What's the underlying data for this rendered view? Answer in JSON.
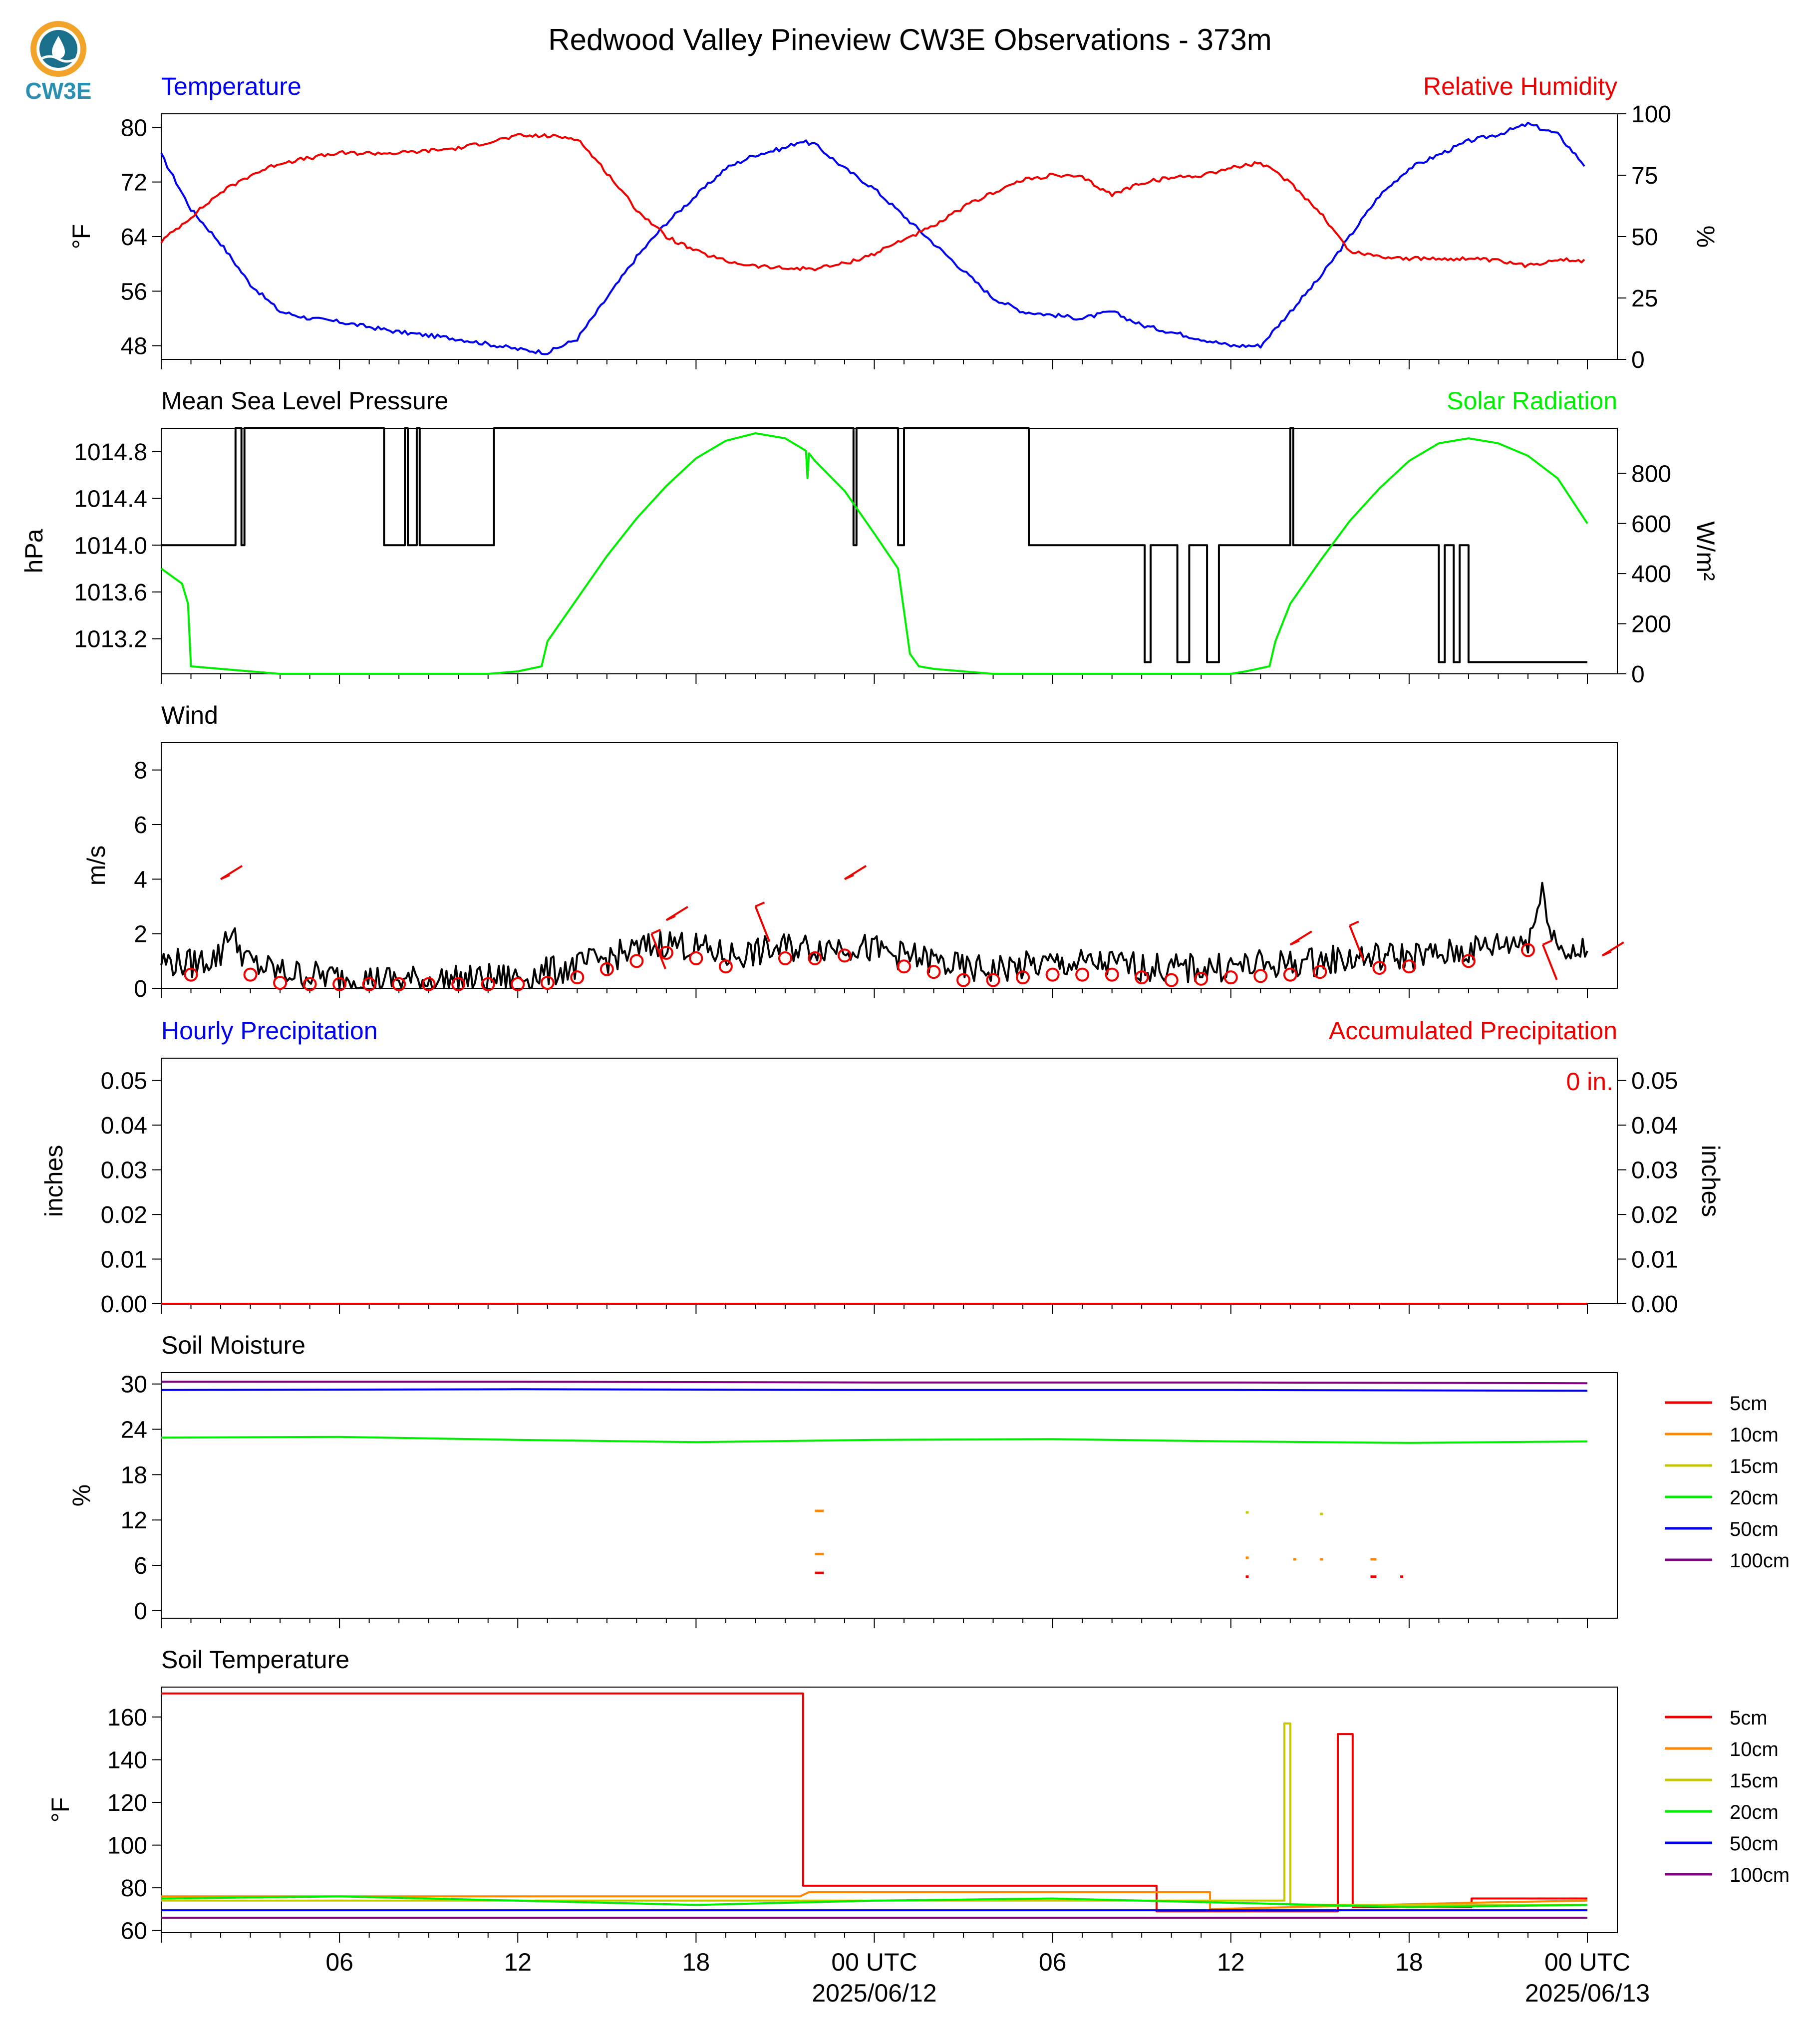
{
  "title": "Redwood Valley Pineview CW3E Observations - 373m",
  "logo": {
    "text": "CW3E"
  },
  "colors": {
    "blue": "#0000ee",
    "red": "#ee0000",
    "green": "#00ee00",
    "black": "#000000"
  },
  "xaxis": {
    "tick_labels": [
      "06",
      "12",
      "18",
      "00 UTC",
      "06",
      "12",
      "18",
      "00 UTC"
    ],
    "tick_hours": [
      6,
      12,
      18,
      24,
      30,
      36,
      42,
      48
    ],
    "date_labels": [
      {
        "hour": 24,
        "text": "2025/06/12"
      },
      {
        "hour": 48,
        "text": "2025/06/13"
      }
    ],
    "range_hours": [
      0,
      49
    ]
  },
  "legend_labels": [
    "5cm",
    "10cm",
    "15cm",
    "20cm",
    "50cm",
    "100cm"
  ],
  "chart_data": [
    {
      "type": "line",
      "left_title": "Temperature",
      "right_title": "Relative Humidity",
      "ylabel": "°F",
      "y2label": "%",
      "ylim": [
        46,
        82
      ],
      "yticks": [
        "48",
        "56",
        "64",
        "72",
        "80"
      ],
      "y2lim": [
        0,
        100
      ],
      "y2ticks": [
        "0",
        "25",
        "50",
        "75",
        "100"
      ],
      "series": [
        {
          "key": "temp",
          "color": "#0000ee",
          "axis": "left",
          "x": [
            0,
            1,
            2,
            3,
            4,
            5,
            6,
            8,
            10,
            12,
            13,
            14,
            15,
            16,
            17,
            18,
            19,
            20,
            21,
            21.5,
            22,
            23,
            24,
            25,
            26,
            27,
            28,
            29,
            30,
            31,
            32,
            33,
            34,
            35,
            36,
            37,
            38,
            39,
            40,
            41,
            42,
            43,
            44,
            45,
            46,
            47,
            48
          ],
          "y": [
            76,
            68,
            63,
            57,
            53,
            52,
            51.5,
            50,
            49,
            47.5,
            47,
            49,
            55,
            61,
            66,
            70,
            74,
            76,
            77,
            78,
            77.5,
            74,
            71,
            67,
            63,
            59,
            55,
            53,
            52.5,
            52,
            53,
            51,
            50,
            49,
            48,
            48,
            53,
            58,
            64,
            70,
            74,
            76,
            78,
            79,
            80.5,
            79,
            74
          ]
        },
        {
          "key": "rh",
          "color": "#ee0000",
          "axis": "right",
          "x": [
            0,
            1,
            2,
            3,
            4,
            5,
            6,
            8,
            10,
            12,
            13,
            14,
            15,
            16,
            17,
            18,
            19,
            20,
            21,
            22,
            23,
            24,
            25,
            26,
            27,
            28,
            29,
            30,
            31,
            32,
            33,
            34,
            35,
            36,
            37,
            38,
            39,
            40,
            41,
            42,
            43,
            44,
            45,
            46,
            47,
            48
          ],
          "y": [
            48,
            58,
            68,
            75,
            80,
            82,
            84,
            84,
            86,
            91,
            91,
            90,
            76,
            61,
            50,
            44,
            40,
            38,
            37,
            37,
            39,
            43,
            49,
            54,
            62,
            68,
            73,
            75,
            74,
            67,
            72,
            74,
            75,
            78,
            80,
            72,
            60,
            44,
            42,
            41,
            41,
            41,
            40,
            38,
            41,
            40
          ]
        }
      ]
    },
    {
      "type": "line",
      "left_title": "Mean Sea Level Pressure",
      "right_title": "Solar Radiation",
      "ylabel": "hPa",
      "y2label": "W/m²",
      "ylim": [
        1012.9,
        1015.0
      ],
      "yticks": [
        "1013.2",
        "1013.6",
        "1014.0",
        "1014.4",
        "1014.8"
      ],
      "y2lim": [
        0,
        980
      ],
      "y2ticks": [
        "0",
        "200",
        "400",
        "600",
        "800"
      ],
      "series": [
        {
          "key": "pressure",
          "color": "#000000",
          "axis": "left",
          "step": true,
          "x": [
            0,
            2.5,
            2.5,
            2.7,
            2.7,
            2.8,
            2.8,
            7.5,
            7.5,
            8.2,
            8.2,
            8.3,
            8.3,
            8.6,
            8.6,
            8.7,
            8.7,
            11.2,
            11.2,
            11.4,
            11.4,
            23.3,
            23.3,
            23.4,
            23.4,
            24.8,
            24.8,
            25.0,
            25.0,
            25.2,
            25.2,
            29.2,
            29.2,
            33.1,
            33.1,
            33.3,
            33.3,
            34.2,
            34.2,
            34.6,
            34.6,
            35.2,
            35.2,
            35.6,
            35.6,
            38.0,
            38.0,
            38.1,
            38.1,
            43.0,
            43.0,
            43.2,
            43.2,
            43.5,
            43.5,
            43.7,
            43.7,
            44.0,
            44.0,
            48.0
          ],
          "y": [
            1014.0,
            1014.0,
            1015.0,
            1015.0,
            1014.0,
            1014.0,
            1015.0,
            1015.0,
            1014.0,
            1014.0,
            1015.0,
            1015.0,
            1014.0,
            1014.0,
            1015.0,
            1015.0,
            1014.0,
            1014.0,
            1015.0,
            1015.0,
            1015.0,
            1015.0,
            1014.0,
            1014.0,
            1015.0,
            1015.0,
            1014.0,
            1014.0,
            1015.0,
            1015.0,
            1015.0,
            1015.0,
            1014.0,
            1014.0,
            1013.0,
            1013.0,
            1014.0,
            1014.0,
            1013.0,
            1013.0,
            1014.0,
            1014.0,
            1013.0,
            1013.0,
            1014.0,
            1014.0,
            1015.0,
            1015.0,
            1014.0,
            1014.0,
            1013.0,
            1013.0,
            1014.0,
            1014.0,
            1013.0,
            1013.0,
            1014.0,
            1014.0,
            1013.0,
            1013.0
          ]
        },
        {
          "key": "solar",
          "color": "#00ee00",
          "axis": "right",
          "x": [
            0,
            0.7,
            0.9,
            1,
            2,
            3,
            4,
            6,
            8,
            10,
            11,
            12,
            12.8,
            13,
            14,
            15,
            16,
            17,
            18,
            19,
            20,
            21,
            21.7,
            21.75,
            21.8,
            22,
            23,
            24,
            24.8,
            25.2,
            25.5,
            26,
            27,
            28,
            30,
            32,
            34,
            36,
            36.5,
            37.3,
            37.5,
            38,
            39,
            40,
            41,
            42,
            43,
            44,
            45,
            46,
            47,
            48
          ],
          "y": [
            420,
            360,
            280,
            30,
            20,
            10,
            0,
            0,
            0,
            0,
            0,
            10,
            30,
            130,
            300,
            470,
            620,
            750,
            860,
            930,
            960,
            940,
            890,
            780,
            880,
            850,
            730,
            560,
            420,
            80,
            30,
            20,
            10,
            0,
            0,
            0,
            0,
            0,
            10,
            30,
            130,
            280,
            450,
            610,
            740,
            850,
            920,
            940,
            920,
            870,
            780,
            600
          ]
        }
      ]
    },
    {
      "type": "line",
      "left_title": "Wind",
      "ylabel": "m/s",
      "ylim": [
        0,
        9
      ],
      "yticks": [
        "0",
        "2",
        "4",
        "6",
        "8"
      ],
      "series": [
        {
          "key": "wind",
          "color": "#000000",
          "axis": "left",
          "noisy": true,
          "x": [
            0,
            1,
            2,
            2.2,
            3,
            4,
            6,
            8,
            10,
            12,
            13,
            14,
            15,
            16,
            17,
            18,
            19,
            20,
            21,
            22,
            23,
            24,
            25,
            26,
            27,
            28,
            30,
            32,
            34,
            36,
            38,
            40,
            42,
            43,
            44,
            45,
            46,
            46.5,
            47,
            48
          ],
          "y": [
            1.0,
            0.9,
            1.2,
            2.2,
            0.9,
            0.6,
            0.4,
            0.3,
            0.3,
            0.4,
            0.6,
            0.8,
            1.1,
            1.4,
            1.7,
            1.5,
            1.2,
            1.3,
            1.5,
            1.5,
            1.6,
            1.4,
            1.2,
            1.0,
            0.7,
            0.7,
            0.9,
            0.9,
            0.7,
            0.8,
            0.9,
            1.1,
            1.2,
            1.2,
            1.4,
            1.6,
            1.8,
            3.5,
            1.5,
            1.3
          ]
        }
      ],
      "circles_x": [
        1,
        3,
        4,
        5,
        6,
        7,
        8,
        9,
        10,
        11,
        12,
        13,
        14,
        15,
        16,
        17,
        18,
        19,
        21,
        22,
        23,
        25,
        26,
        27,
        28,
        29,
        30,
        31,
        32,
        33,
        34,
        35,
        36,
        37,
        38,
        39,
        41,
        42,
        44,
        46
      ],
      "barbs": [
        {
          "hour": 2.0,
          "speed": 4.0
        },
        {
          "hour": 16.5,
          "speed": 2.0
        },
        {
          "hour": 17.0,
          "speed": 2.5
        },
        {
          "hour": 20.0,
          "speed": 3.0
        },
        {
          "hour": 23.0,
          "speed": 4.0
        },
        {
          "hour": 40.0,
          "speed": 2.3
        },
        {
          "hour": 38.0,
          "speed": 1.6
        },
        {
          "hour": 46.5,
          "speed": 1.6
        },
        {
          "hour": 48.5,
          "speed": 1.2
        }
      ]
    },
    {
      "type": "line",
      "left_title": "Hourly Precipitation",
      "right_title": "Accumulated Precipitation",
      "annotation": "0 in.",
      "ylabel": "inches",
      "y2label": "inches",
      "ylim": [
        0,
        0.055
      ],
      "yticks": [
        "0.00",
        "0.01",
        "0.02",
        "0.03",
        "0.04",
        "0.05"
      ],
      "y2lim": [
        0,
        0.055
      ],
      "y2ticks": [
        "0.00",
        "0.01",
        "0.02",
        "0.03",
        "0.04",
        "0.05"
      ],
      "series": [
        {
          "key": "accum",
          "color": "#ee0000",
          "axis": "left",
          "x": [
            0,
            48
          ],
          "y": [
            0,
            0
          ]
        }
      ]
    },
    {
      "type": "line",
      "left_title": "Soil Moisture",
      "ylabel": "%",
      "ylim": [
        -1,
        31.5
      ],
      "yticks": [
        "0",
        "6",
        "12",
        "18",
        "24",
        "30"
      ],
      "series": [
        {
          "key": "sm100",
          "label": "100cm",
          "color": "#800080",
          "x": [
            0,
            12,
            24,
            36,
            48
          ],
          "y": [
            30.3,
            30.3,
            30.2,
            30.2,
            30.1
          ]
        },
        {
          "key": "sm50",
          "label": "50cm",
          "color": "#0000ee",
          "x": [
            0,
            12,
            24,
            36,
            48
          ],
          "y": [
            29.2,
            29.3,
            29.2,
            29.2,
            29.1
          ]
        },
        {
          "key": "sm20",
          "label": "20cm",
          "color": "#00ee00",
          "x": [
            0,
            6,
            12,
            18,
            24,
            30,
            36,
            42,
            48
          ],
          "y": [
            22.9,
            23.0,
            22.6,
            22.3,
            22.6,
            22.7,
            22.4,
            22.2,
            22.4
          ]
        },
        {
          "key": "sm15",
          "label": "15cm",
          "color": "#c8c800",
          "x": [],
          "y": []
        },
        {
          "key": "sm10",
          "label": "10cm",
          "color": "#ff8800",
          "x": [],
          "y": []
        },
        {
          "key": "sm5",
          "label": "5cm",
          "color": "#ee0000",
          "x": [],
          "y": []
        }
      ],
      "segments": [
        {
          "color": "#ff8800",
          "x0": 22.0,
          "x1": 22.3,
          "y": 13.2
        },
        {
          "color": "#ff8800",
          "x0": 22.0,
          "x1": 22.3,
          "y": 7.5
        },
        {
          "color": "#ee0000",
          "x0": 22.0,
          "x1": 22.3,
          "y": 5.0
        },
        {
          "color": "#c8c800",
          "x0": 36.5,
          "x1": 36.6,
          "y": 13.0
        },
        {
          "color": "#ff8800",
          "x0": 36.5,
          "x1": 36.6,
          "y": 7.0
        },
        {
          "color": "#ee0000",
          "x0": 36.5,
          "x1": 36.6,
          "y": 4.5
        },
        {
          "color": "#ff8800",
          "x0": 38.1,
          "x1": 38.2,
          "y": 6.8
        },
        {
          "color": "#c8c800",
          "x0": 39.0,
          "x1": 39.1,
          "y": 12.8
        },
        {
          "color": "#ff8800",
          "x0": 39.0,
          "x1": 39.1,
          "y": 6.8
        },
        {
          "color": "#ff8800",
          "x0": 40.7,
          "x1": 40.9,
          "y": 6.8
        },
        {
          "color": "#ee0000",
          "x0": 40.7,
          "x1": 40.9,
          "y": 4.5
        },
        {
          "color": "#ee0000",
          "x0": 41.7,
          "x1": 41.8,
          "y": 4.5
        }
      ]
    },
    {
      "type": "line",
      "left_title": "Soil Temperature",
      "ylabel": "°F",
      "ylim": [
        59,
        174
      ],
      "yticks": [
        "60",
        "80",
        "100",
        "120",
        "140",
        "160"
      ],
      "series": [
        {
          "key": "st5",
          "label": "5cm",
          "color": "#ee0000",
          "step": true,
          "x": [
            0,
            21.6,
            21.6,
            33.5,
            33.5,
            39.6,
            39.6,
            40.1,
            40.1,
            44.1,
            44.1,
            48
          ],
          "y": [
            171,
            171,
            81,
            81,
            69,
            69,
            152,
            152,
            71,
            71,
            75,
            75
          ]
        },
        {
          "key": "st10",
          "label": "10cm",
          "color": "#ff8800",
          "x": [
            0,
            21.5,
            21.8,
            33.5,
            35.3,
            35.3,
            44,
            48
          ],
          "y": [
            76,
            76,
            78,
            78,
            78,
            70,
            73,
            74
          ]
        },
        {
          "key": "st15",
          "label": "15cm",
          "color": "#c8c800",
          "step": true,
          "x": [
            0,
            37.8,
            37.8,
            38.0,
            38.0,
            48
          ],
          "y": [
            74,
            74,
            157,
            157,
            72,
            72
          ]
        },
        {
          "key": "st20",
          "label": "20cm",
          "color": "#00ee00",
          "x": [
            0,
            6,
            12,
            18,
            24,
            30,
            36,
            42,
            48
          ],
          "y": [
            75,
            76,
            74,
            72,
            74,
            75,
            73,
            71,
            72
          ]
        },
        {
          "key": "st50",
          "label": "50cm",
          "color": "#0000ee",
          "x": [
            0,
            12,
            24,
            36,
            48
          ],
          "y": [
            69.5,
            69.5,
            69.5,
            69.5,
            69.5
          ]
        },
        {
          "key": "st100",
          "label": "100cm",
          "color": "#800080",
          "x": [
            0,
            12,
            24,
            36,
            48
          ],
          "y": [
            66,
            66,
            66,
            66,
            66
          ]
        }
      ]
    }
  ]
}
